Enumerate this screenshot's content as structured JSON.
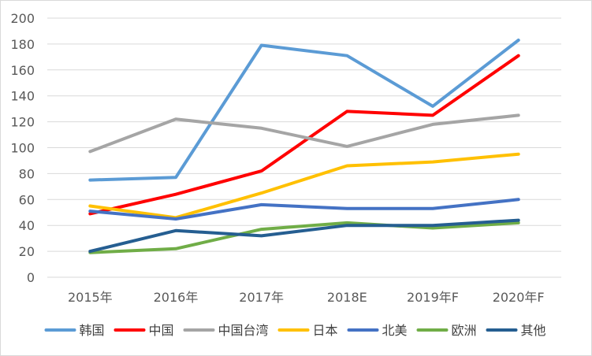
{
  "chart_data": {
    "type": "line",
    "categories": [
      "2015年",
      "2016年",
      "2017年",
      "2018E",
      "2019年F",
      "2020年F"
    ],
    "ylim": [
      0,
      200
    ],
    "yticks": [
      0,
      20,
      40,
      60,
      80,
      100,
      120,
      140,
      160,
      180,
      200
    ],
    "ytick_labels": [
      "0",
      "20",
      "40",
      "60",
      "80",
      "100",
      "120",
      "140",
      "160",
      "180",
      "200"
    ],
    "grid": "horizontal",
    "legend_position": "bottom",
    "series": [
      {
        "name": "韩国",
        "color": "#5B9BD5",
        "values": [
          75,
          77,
          179,
          171,
          132,
          183
        ]
      },
      {
        "name": "中国",
        "color": "#FF0000",
        "values": [
          49,
          64,
          82,
          128,
          125,
          171
        ]
      },
      {
        "name": "中国台湾",
        "color": "#A5A5A5",
        "values": [
          97,
          122,
          115,
          101,
          118,
          125
        ]
      },
      {
        "name": "日本",
        "color": "#FFC000",
        "values": [
          55,
          46,
          65,
          86,
          89,
          95
        ]
      },
      {
        "name": "北美",
        "color": "#4472C4",
        "values": [
          51,
          45,
          56,
          53,
          53,
          60
        ]
      },
      {
        "name": "欧洲",
        "color": "#70AD47",
        "values": [
          19,
          22,
          37,
          42,
          38,
          42
        ]
      },
      {
        "name": "其他",
        "color": "#255E91",
        "values": [
          20,
          36,
          32,
          40,
          40,
          44
        ]
      }
    ]
  }
}
